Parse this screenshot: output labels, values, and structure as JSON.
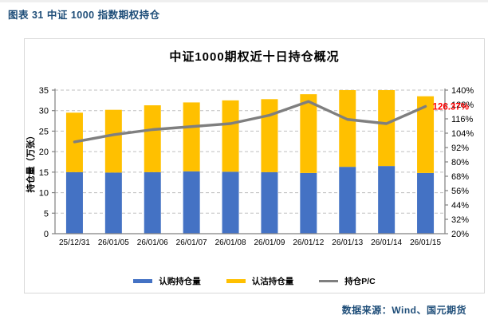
{
  "header": {
    "title": "图表 31 中证 1000 指数期权持仓"
  },
  "footer": {
    "source": "数据来源：Wind、国元期货"
  },
  "colors": {
    "header_text": "#1f4e79",
    "call_bar": "#4472c4",
    "put_bar": "#ffc000",
    "pc_line": "#7f7f7f",
    "axis": "#808080",
    "gridline": "#bfbfbf",
    "annotation": "#ff0000",
    "frame_border": "#d9d9d9"
  },
  "chart_data": {
    "type": "bar",
    "subtype": "stacked-bars-with-line",
    "title": "中证1000期权近十日持仓概况",
    "categories": [
      "25/12/31",
      "26/01/05",
      "26/01/06",
      "26/01/07",
      "26/01/08",
      "26/01/09",
      "26/01/12",
      "26/01/13",
      "26/01/14",
      "26/01/15"
    ],
    "series": [
      {
        "name": "认购持仓量",
        "type": "bar",
        "stack": true,
        "color": "#4472c4",
        "axis": "left",
        "values": [
          15.0,
          14.9,
          15.0,
          15.2,
          15.1,
          15.0,
          14.8,
          16.3,
          16.5,
          14.8
        ]
      },
      {
        "name": "认沽持仓量",
        "type": "bar",
        "stack": true,
        "color": "#ffc000",
        "axis": "left",
        "values": [
          14.5,
          15.3,
          16.3,
          16.8,
          17.4,
          17.8,
          19.2,
          18.7,
          18.5,
          18.7
        ]
      },
      {
        "name": "持仓P/C",
        "type": "line",
        "color": "#7f7f7f",
        "axis": "right",
        "unit": "%",
        "values": [
          96.7,
          102.7,
          107.0,
          109.5,
          112.0,
          119.0,
          130.5,
          115.5,
          112.0,
          126.37
        ]
      }
    ],
    "left_axis": {
      "label": "持仓量（万张）",
      "min": 0,
      "max": 35,
      "step": 5,
      "tick_labels": [
        "0",
        "5",
        "10",
        "15",
        "20",
        "25",
        "30",
        "35"
      ]
    },
    "right_axis": {
      "min": 20,
      "max": 140,
      "step": 12,
      "tick_labels": [
        "20%",
        "32%",
        "44%",
        "56%",
        "68%",
        "80%",
        "92%",
        "104%",
        "116%",
        "128%",
        "140%"
      ]
    },
    "annotation": {
      "text": "126.37%",
      "color": "#ff0000",
      "series_index": 2,
      "point_index": 9
    },
    "grid": true,
    "grid_style": "dashed",
    "legend_position": "bottom"
  }
}
